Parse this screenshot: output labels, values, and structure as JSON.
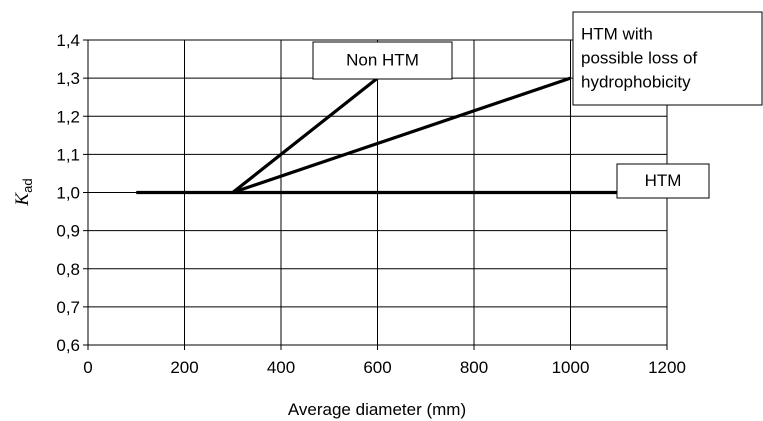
{
  "chart_data": {
    "type": "line",
    "xlabel": "Average  diameter (mm)",
    "ylabel": "K",
    "ylabel_subscript": "ad",
    "xlim": [
      0,
      1200
    ],
    "ylim": [
      0.6,
      1.4
    ],
    "x_ticks": [
      "0",
      "200",
      "400",
      "600",
      "800",
      "1000",
      "1200"
    ],
    "y_ticks": [
      "0,6",
      "0,7",
      "0,8",
      "0,9",
      "1,0",
      "1,1",
      "1,2",
      "1,3",
      "1,4"
    ],
    "grid": true,
    "series": [
      {
        "name": "HTM",
        "x": [
          100,
          1100
        ],
        "y": [
          1.0,
          1.0
        ]
      },
      {
        "name": "Non HTM",
        "x": [
          300,
          600
        ],
        "y": [
          1.0,
          1.3
        ]
      },
      {
        "name": "HTM with possible loss of hydrophobicity",
        "x": [
          300,
          1000
        ],
        "y": [
          1.0,
          1.3
        ]
      }
    ],
    "annotations": [
      {
        "lines": [
          "Non HTM"
        ]
      },
      {
        "lines": [
          "HTM with",
          "possible loss of",
          "hydrophobicity"
        ]
      },
      {
        "lines": [
          "HTM"
        ]
      }
    ],
    "colors": {
      "lines": "#000000",
      "grid": "#000000",
      "background": "#ffffff"
    }
  }
}
